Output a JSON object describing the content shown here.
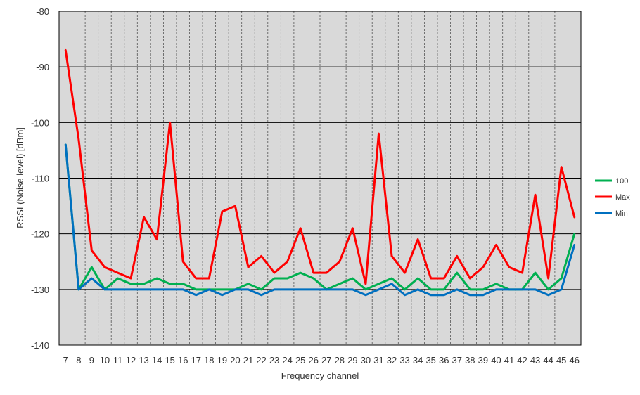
{
  "chart_data": {
    "type": "line",
    "xlabel": "Frequency channel",
    "ylabel": "RSSI (Noise level) [dBm]",
    "ylim": [
      -140,
      -80
    ],
    "yticks": [
      -80,
      -90,
      -100,
      -110,
      -120,
      -130,
      -140
    ],
    "grid": true,
    "legend_position": "right",
    "plot_background": "#d9d9d9",
    "x": [
      "7",
      "8",
      "9",
      "10",
      "11",
      "12",
      "13",
      "14",
      "15",
      "16",
      "17",
      "18",
      "19",
      "20",
      "21",
      "22",
      "23",
      "24",
      "25",
      "26",
      "27",
      "28",
      "29",
      "30",
      "31",
      "32",
      "33",
      "34",
      "35",
      "36",
      "37",
      "38",
      "39",
      "40",
      "41",
      "42",
      "43",
      "44",
      "45",
      "46"
    ],
    "series": [
      {
        "name": "100",
        "color": "#00b050",
        "values": [
          -104,
          -130,
          -126,
          -130,
          -128,
          -129,
          -129,
          -128,
          -129,
          -129,
          -130,
          -130,
          -130,
          -130,
          -129,
          -130,
          -128,
          -128,
          -127,
          -128,
          -130,
          -129,
          -128,
          -130,
          -129,
          -128,
          -130,
          -128,
          -130,
          -130,
          -127,
          -130,
          -130,
          -129,
          -130,
          -130,
          -127,
          -130,
          -128,
          -120
        ]
      },
      {
        "name": "Max",
        "color": "#ff0000",
        "values": [
          -87,
          -103,
          -123,
          -126,
          -127,
          -128,
          -117,
          -121,
          -100,
          -125,
          -128,
          -128,
          -116,
          -115,
          -126,
          -124,
          -127,
          -125,
          -119,
          -127,
          -127,
          -125,
          -119,
          -129,
          -102,
          -124,
          -127,
          -121,
          -128,
          -128,
          -124,
          -128,
          -126,
          -122,
          -126,
          -127,
          -113,
          -128,
          -108,
          -117
        ]
      },
      {
        "name": "Min",
        "color": "#0070c0",
        "values": [
          -104,
          -130,
          -128,
          -130,
          -130,
          -130,
          -130,
          -130,
          -130,
          -130,
          -131,
          -130,
          -131,
          -130,
          -130,
          -131,
          -130,
          -130,
          -130,
          -130,
          -130,
          -130,
          -130,
          -131,
          -130,
          -129,
          -131,
          -130,
          -131,
          -131,
          -130,
          -131,
          -131,
          -130,
          -130,
          -130,
          -130,
          -131,
          -130,
          -122
        ]
      }
    ]
  }
}
